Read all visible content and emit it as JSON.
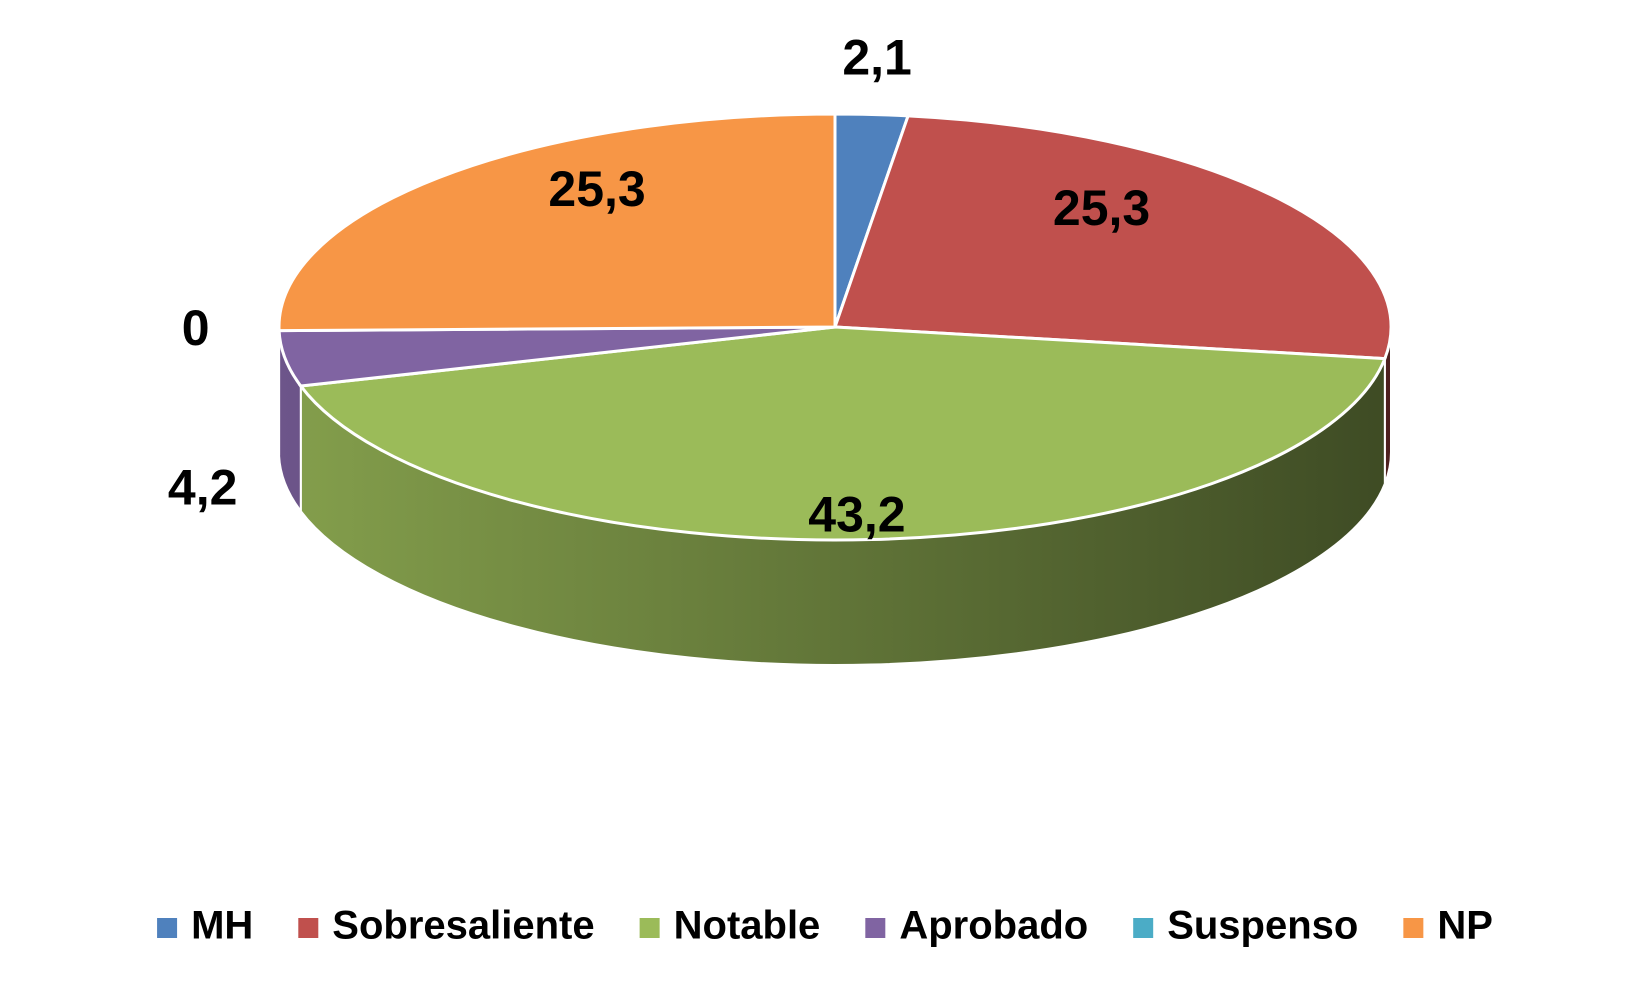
{
  "chart_data": {
    "type": "pie",
    "style": "3d",
    "categories": [
      "MH",
      "Sobresaliente",
      "Notable",
      "Aprobado",
      "Suspenso",
      "NP"
    ],
    "values": [
      2.1,
      25.3,
      43.2,
      4.2,
      0,
      25.3
    ],
    "value_labels": [
      "2,1",
      "25,3",
      "43,2",
      "4,2",
      "0",
      "25,3"
    ],
    "colors": [
      "#4f81bd",
      "#c0504d",
      "#9bbb59",
      "#8064a2",
      "#4bacc6",
      "#f79646"
    ],
    "legend": "bottom"
  }
}
